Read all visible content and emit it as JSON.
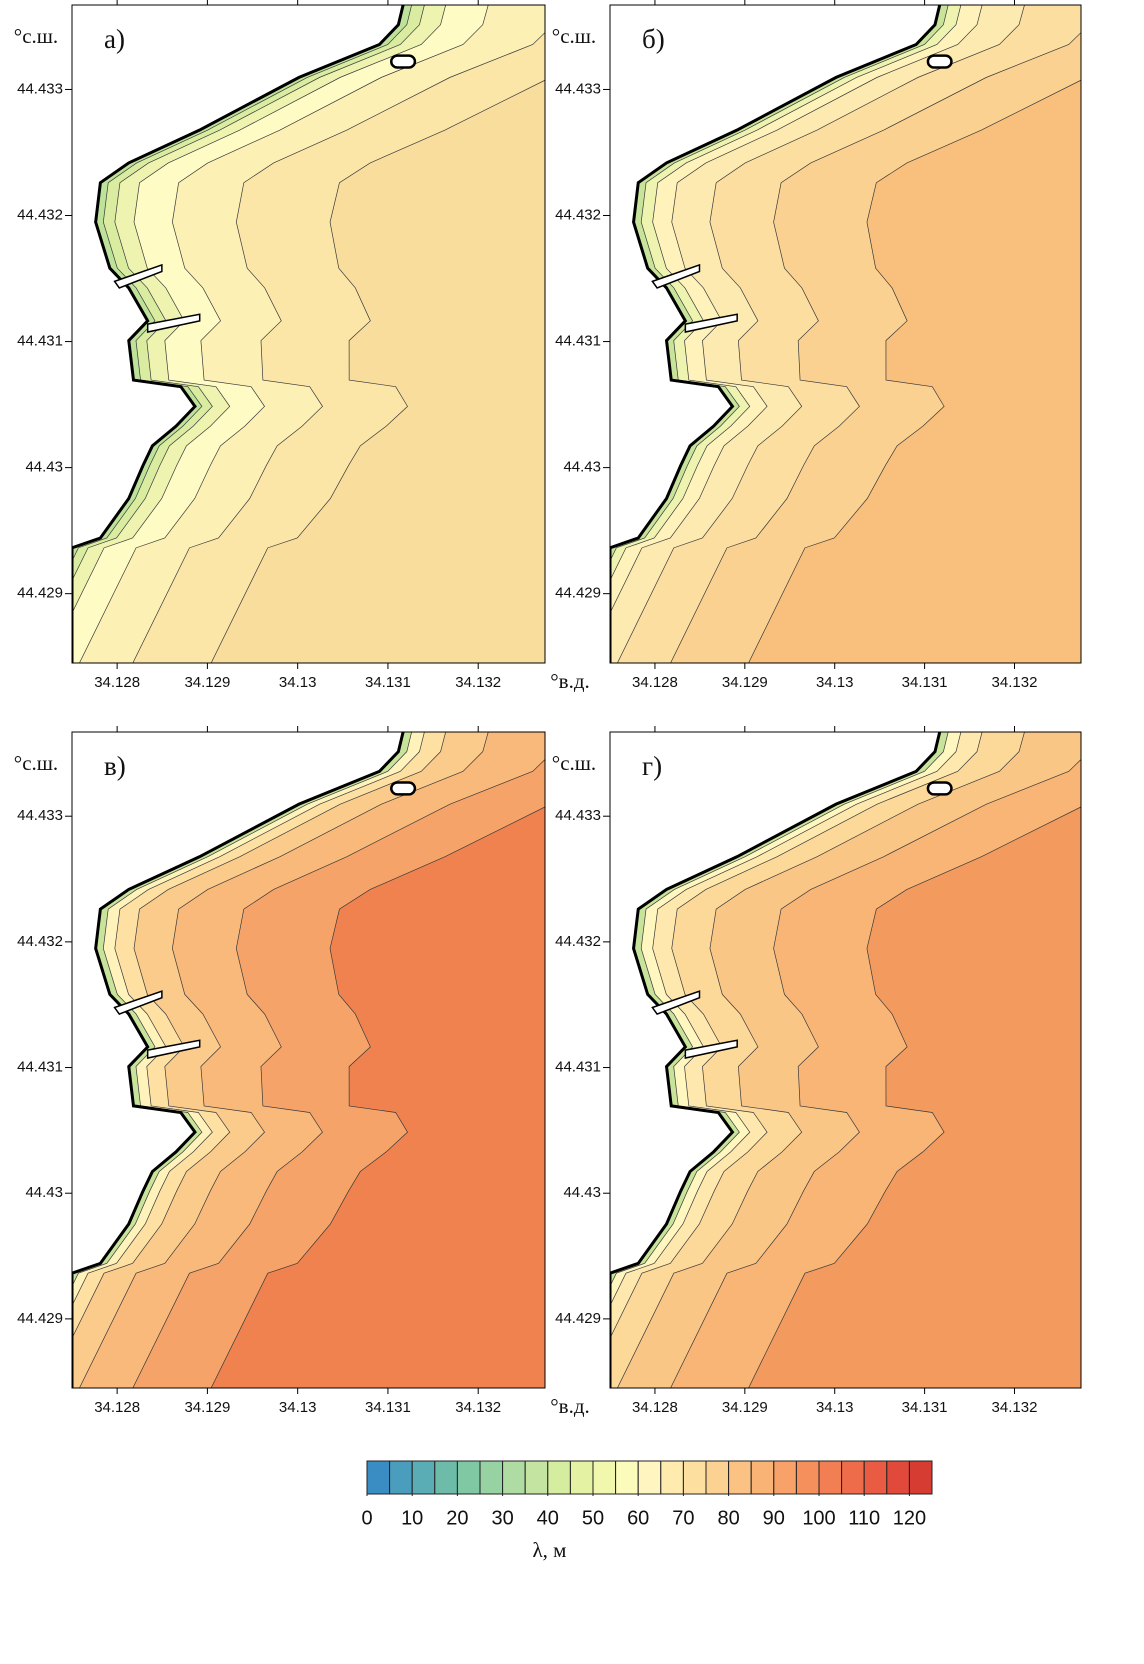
{
  "chart_data": [
    {
      "type": "contour",
      "label": "а)",
      "x_label": "°в.д.",
      "y_label": "°с.ш.",
      "xlim": [
        34.1275,
        34.13274
      ],
      "ylim": [
        44.42845,
        44.43367
      ],
      "xticks": [
        34.128,
        34.129,
        34.13,
        34.131,
        34.132
      ],
      "yticks": [
        44.429,
        44.43,
        44.431,
        44.432,
        44.433
      ]
    },
    {
      "type": "contour",
      "label": "б)",
      "y_label": "°с.ш.",
      "xlim": [
        34.1275,
        34.13274
      ],
      "ylim": [
        44.42845,
        44.43367
      ],
      "xticks": [
        34.128,
        34.129,
        34.13,
        34.131,
        34.132
      ],
      "yticks": [
        44.429,
        44.43,
        44.431,
        44.432,
        44.433
      ]
    },
    {
      "type": "contour",
      "label": "в)",
      "x_label": "°в.д.",
      "y_label": "°с.ш.",
      "xlim": [
        34.1275,
        34.13274
      ],
      "ylim": [
        44.42845,
        44.43367
      ],
      "xticks": [
        34.128,
        34.129,
        34.13,
        34.131,
        34.132
      ],
      "yticks": [
        44.429,
        44.43,
        44.431,
        44.432,
        44.433
      ]
    },
    {
      "type": "contour",
      "label": "г)",
      "y_label": "°с.ш.",
      "xlim": [
        34.1275,
        34.13274
      ],
      "ylim": [
        44.42845,
        44.43367
      ],
      "xticks": [
        34.128,
        34.129,
        34.13,
        34.131,
        34.132
      ],
      "yticks": [
        44.429,
        44.43,
        44.431,
        44.432,
        44.433
      ]
    },
    {
      "type": "colorbar",
      "x_label": "λ, м",
      "xlim": [
        0,
        125
      ],
      "bins": [
        0,
        5,
        10,
        15,
        20,
        25,
        30,
        35,
        40,
        45,
        50,
        55,
        60,
        65,
        70,
        75,
        80,
        85,
        90,
        95,
        100,
        105,
        110,
        115,
        120,
        125
      ],
      "colors": [
        "#3a8dc2",
        "#4b9dbe",
        "#5badb5",
        "#6cbca9",
        "#80c8a3",
        "#97d2a2",
        "#aedca2",
        "#c3e5a1",
        "#d5ed9f",
        "#e4f3a3",
        "#f1f8ae",
        "#fbfbbb",
        "#fff5c0",
        "#feebad",
        "#fde0a0",
        "#fcd293",
        "#fbc283",
        "#f9b375",
        "#f8a269",
        "#f5905d",
        "#f27f53",
        "#ee6c4a",
        "#e95b42",
        "#e14a3a",
        "#d73c32"
      ],
      "xticks": [
        0,
        10,
        20,
        30,
        40,
        50,
        60,
        70,
        80,
        90,
        100,
        110,
        120
      ]
    }
  ]
}
